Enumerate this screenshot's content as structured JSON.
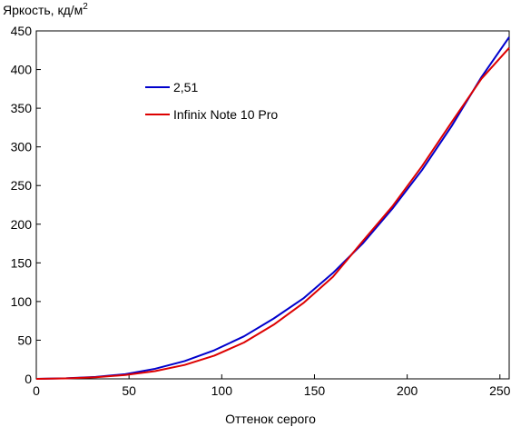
{
  "chart_data": {
    "type": "line",
    "xlabel": "Оттенок серого",
    "ylabel": "Яркость, кд/м",
    "ylabel_superscript": "2",
    "xlim": [
      0,
      255
    ],
    "ylim": [
      0,
      450
    ],
    "xticks": [
      0,
      50,
      100,
      150,
      200,
      250
    ],
    "yticks": [
      0,
      50,
      100,
      150,
      200,
      250,
      300,
      350,
      400,
      450
    ],
    "grid": false,
    "legend_position": "upper-left",
    "series": [
      {
        "name": "2,51",
        "color": "#0000cc",
        "x": [
          0,
          16,
          32,
          48,
          64,
          80,
          96,
          112,
          128,
          144,
          160,
          176,
          192,
          208,
          224,
          240,
          255
        ],
        "y": [
          0,
          0.8,
          2.5,
          6,
          13,
          23,
          37,
          55,
          78,
          104,
          137,
          175,
          220,
          270,
          327,
          390,
          442
        ]
      },
      {
        "name": "Infinix Note 10 Pro",
        "color": "#dd0000",
        "x": [
          0,
          16,
          32,
          48,
          64,
          80,
          96,
          112,
          128,
          144,
          160,
          176,
          192,
          208,
          224,
          240,
          255
        ],
        "y": [
          0,
          0.6,
          2,
          5,
          10,
          18,
          30,
          47,
          70,
          98,
          132,
          178,
          223,
          275,
          332,
          388,
          428
        ]
      }
    ]
  }
}
